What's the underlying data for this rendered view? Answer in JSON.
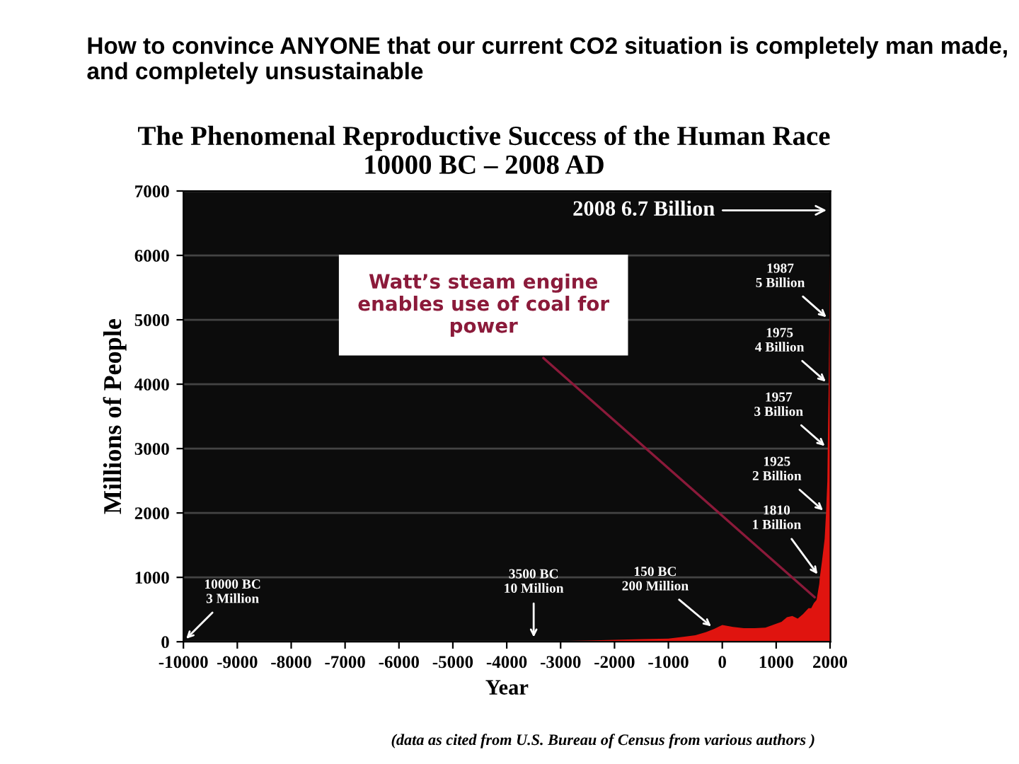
{
  "chart_data": {
    "type": "area",
    "title": "How to convince ANYONE that our current CO2 situation is completely man made, and completely unsustainable",
    "subtitle": "The Phenomenal Reproductive Success of the Human Race\n10000 BC – 2008 AD",
    "xlabel": "Year",
    "ylabel": "Millions of People",
    "x": [
      -10000,
      -8000,
      -6000,
      -5000,
      -4000,
      -3500,
      -3000,
      -2500,
      -2000,
      -1500,
      -1000,
      -700,
      -500,
      -300,
      -150,
      0,
      200,
      400,
      600,
      800,
      1000,
      1100,
      1200,
      1300,
      1400,
      1500,
      1600,
      1650,
      1700,
      1750,
      1800,
      1810,
      1850,
      1900,
      1925,
      1950,
      1957,
      1975,
      1987,
      2000,
      2008
    ],
    "series": [
      {
        "color": "#e0140f",
        "values": [
          0,
          0,
          10,
          10,
          10,
          10,
          10,
          20,
          30,
          40,
          50,
          80,
          100,
          150,
          200,
          260,
          230,
          210,
          210,
          220,
          280,
          310,
          380,
          400,
          360,
          430,
          520,
          520,
          600,
          650,
          900,
          1000,
          1250,
          1600,
          2000,
          2500,
          3000,
          4000,
          5000,
          6000,
          6700
        ]
      }
    ],
    "xlim": [
      -10000,
      2008
    ],
    "ylim": [
      0,
      7000
    ],
    "xticks": [
      -10000,
      -9000,
      -8000,
      -7000,
      -6000,
      -5000,
      -4000,
      -3000,
      -2000,
      -1000,
      0,
      1000,
      2000
    ],
    "yticks": [
      0,
      1000,
      2000,
      3000,
      4000,
      5000,
      6000,
      7000
    ],
    "grid": "y",
    "annotations": [
      {
        "text": "2008 6.7 Billion",
        "x": 2008,
        "y": 6700
      },
      {
        "text": "1987\n5 Billion",
        "x": 1987,
        "y": 5000
      },
      {
        "text": "1975\n4 Billion",
        "x": 1975,
        "y": 4000
      },
      {
        "text": "1957\n3 Billion",
        "x": 1957,
        "y": 3000
      },
      {
        "text": "1925\n2 Billion",
        "x": 1925,
        "y": 2000
      },
      {
        "text": "1810\n1 Billion",
        "x": 1810,
        "y": 1000
      },
      {
        "text": "150 BC\n200 Million",
        "x": -150,
        "y": 200
      },
      {
        "text": "3500 BC\n10 Million",
        "x": -3500,
        "y": 10
      },
      {
        "text": "10000 BC\n3 Million",
        "x": -10000,
        "y": 3
      },
      {
        "text": "Watt’s steam engine\nenables use of coal for\npower",
        "x": 1769,
        "y": 650
      },
      "(data as cited from U.S. Bureau of Census from various authors )"
    ]
  }
}
